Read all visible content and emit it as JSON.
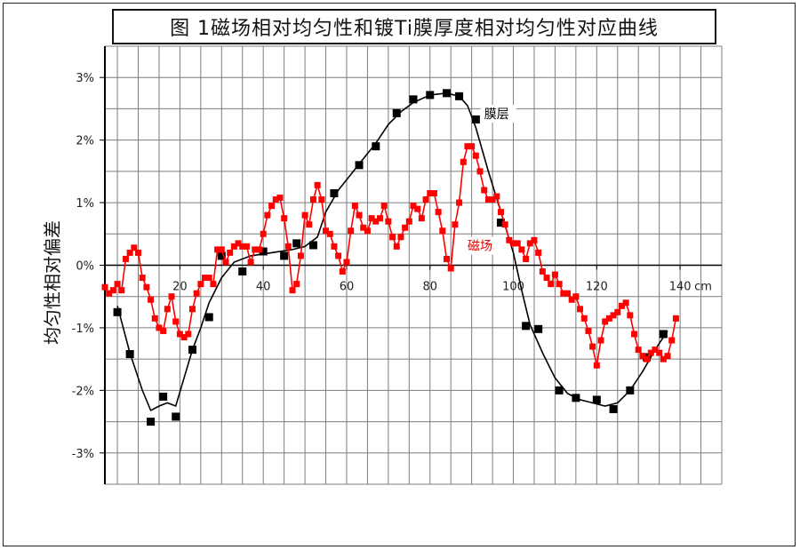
{
  "title": "图  1磁场相对均匀性和镀Ti膜厚度相对均匀性对应曲线",
  "chart_data": {
    "type": "line",
    "title": "图  1磁场相对均匀性和镀Ti膜厚度相对均匀性对应曲线",
    "xlabel": "",
    "ylabel": "均匀性相对偏差",
    "x_unit": "cm",
    "xlim": [
      2,
      150
    ],
    "ylim": [
      -3.5,
      3.5
    ],
    "x_ticks": [
      {
        "value": 20,
        "label": "20"
      },
      {
        "value": 40,
        "label": "40"
      },
      {
        "value": 60,
        "label": "60"
      },
      {
        "value": 80,
        "label": "80"
      },
      {
        "value": 100,
        "label": "100"
      },
      {
        "value": 120,
        "label": "120"
      },
      {
        "value": 140,
        "label": "140"
      }
    ],
    "x_unit_label": "cm",
    "y_ticks": [
      {
        "value": 3,
        "label": "3%"
      },
      {
        "value": 2,
        "label": "2%"
      },
      {
        "value": 1,
        "label": "1%"
      },
      {
        "value": 0,
        "label": "0%"
      },
      {
        "value": -1,
        "label": "-1%"
      },
      {
        "value": -2,
        "label": "-2%"
      },
      {
        "value": -3,
        "label": "-3%"
      }
    ],
    "grid": true,
    "series": [
      {
        "name": "膜层",
        "color": "#000000",
        "marker": "square",
        "label_at": [
          93,
          2.35
        ],
        "points": [
          [
            5,
            -0.75
          ],
          [
            8,
            -1.42
          ],
          [
            13,
            -2.5
          ],
          [
            16,
            -2.1
          ],
          [
            19,
            -2.42
          ],
          [
            23,
            -1.35
          ],
          [
            27,
            -0.83
          ],
          [
            30,
            0.15
          ],
          [
            35,
            -0.1
          ],
          [
            40,
            0.22
          ],
          [
            45,
            0.15
          ],
          [
            48,
            0.35
          ],
          [
            52,
            0.32
          ],
          [
            57,
            1.15
          ],
          [
            63,
            1.6
          ],
          [
            67,
            1.9
          ],
          [
            72,
            2.43
          ],
          [
            76,
            2.65
          ],
          [
            80,
            2.72
          ],
          [
            84,
            2.75
          ],
          [
            87,
            2.7
          ],
          [
            91,
            2.33
          ],
          [
            97,
            0.68
          ],
          [
            103,
            -0.97
          ],
          [
            106,
            -1.02
          ],
          [
            111,
            -2.0
          ],
          [
            115,
            -2.12
          ],
          [
            120,
            -2.15
          ],
          [
            124,
            -2.3
          ],
          [
            128,
            -2.0
          ],
          [
            132,
            -1.47
          ],
          [
            136,
            -1.1
          ]
        ],
        "fit": [
          [
            5,
            -0.65
          ],
          [
            8,
            -1.4
          ],
          [
            11,
            -2.0
          ],
          [
            13,
            -2.32
          ],
          [
            15,
            -2.25
          ],
          [
            17,
            -2.2
          ],
          [
            19,
            -2.25
          ],
          [
            21,
            -1.8
          ],
          [
            23,
            -1.35
          ],
          [
            25,
            -1.0
          ],
          [
            27,
            -0.6
          ],
          [
            30,
            -0.2
          ],
          [
            33,
            0.05
          ],
          [
            37,
            0.15
          ],
          [
            42,
            0.2
          ],
          [
            47,
            0.25
          ],
          [
            50,
            0.3
          ],
          [
            53,
            0.45
          ],
          [
            55,
            0.85
          ],
          [
            58,
            1.2
          ],
          [
            61,
            1.45
          ],
          [
            64,
            1.7
          ],
          [
            67,
            1.95
          ],
          [
            70,
            2.25
          ],
          [
            73,
            2.45
          ],
          [
            76,
            2.6
          ],
          [
            80,
            2.72
          ],
          [
            84,
            2.75
          ],
          [
            87,
            2.7
          ],
          [
            89,
            2.55
          ],
          [
            91,
            2.2
          ],
          [
            94,
            1.5
          ],
          [
            97,
            0.85
          ],
          [
            100,
            0.2
          ],
          [
            102,
            -0.4
          ],
          [
            104,
            -0.95
          ],
          [
            107,
            -1.4
          ],
          [
            110,
            -1.8
          ],
          [
            113,
            -2.05
          ],
          [
            116,
            -2.15
          ],
          [
            119,
            -2.2
          ],
          [
            122,
            -2.25
          ],
          [
            125,
            -2.2
          ],
          [
            128,
            -2.0
          ],
          [
            131,
            -1.7
          ],
          [
            134,
            -1.35
          ],
          [
            137,
            -1.05
          ]
        ]
      },
      {
        "name": "磁场",
        "color": "#ff0000",
        "marker": "square",
        "label_at": [
          89,
          0.24
        ],
        "points": [
          [
            2,
            -0.35
          ],
          [
            3,
            -0.45
          ],
          [
            4,
            -0.4
          ],
          [
            5,
            -0.3
          ],
          [
            6,
            -0.4
          ],
          [
            7,
            0.1
          ],
          [
            8,
            0.2
          ],
          [
            9,
            0.28
          ],
          [
            10,
            0.2
          ],
          [
            11,
            -0.2
          ],
          [
            12,
            -0.35
          ],
          [
            13,
            -0.55
          ],
          [
            14,
            -0.85
          ],
          [
            15,
            -1.0
          ],
          [
            16,
            -1.05
          ],
          [
            17,
            -0.7
          ],
          [
            18,
            -0.5
          ],
          [
            19,
            -0.9
          ],
          [
            20,
            -1.1
          ],
          [
            21,
            -1.15
          ],
          [
            22,
            -1.1
          ],
          [
            23,
            -0.7
          ],
          [
            24,
            -0.45
          ],
          [
            25,
            -0.3
          ],
          [
            26,
            -0.2
          ],
          [
            27,
            -0.2
          ],
          [
            28,
            -0.3
          ],
          [
            29,
            0.25
          ],
          [
            30,
            0.25
          ],
          [
            31,
            0.05
          ],
          [
            32,
            0.2
          ],
          [
            33,
            0.3
          ],
          [
            34,
            0.35
          ],
          [
            35,
            0.3
          ],
          [
            36,
            0.3
          ],
          [
            37,
            0.05
          ],
          [
            38,
            0.25
          ],
          [
            39,
            0.25
          ],
          [
            40,
            0.5
          ],
          [
            41,
            0.8
          ],
          [
            42,
            0.95
          ],
          [
            43,
            1.05
          ],
          [
            44,
            1.08
          ],
          [
            45,
            0.75
          ],
          [
            46,
            0.3
          ],
          [
            47,
            -0.4
          ],
          [
            48,
            -0.3
          ],
          [
            49,
            0.15
          ],
          [
            50,
            0.8
          ],
          [
            51,
            0.65
          ],
          [
            52,
            1.05
          ],
          [
            53,
            1.28
          ],
          [
            54,
            1.05
          ],
          [
            55,
            0.55
          ],
          [
            56,
            0.5
          ],
          [
            57,
            0.3
          ],
          [
            58,
            0.15
          ],
          [
            59,
            -0.1
          ],
          [
            60,
            0.05
          ],
          [
            61,
            0.55
          ],
          [
            62,
            0.95
          ],
          [
            63,
            0.8
          ],
          [
            64,
            0.6
          ],
          [
            65,
            0.55
          ],
          [
            66,
            0.75
          ],
          [
            67,
            0.7
          ],
          [
            68,
            0.75
          ],
          [
            69,
            0.95
          ],
          [
            70,
            0.7
          ],
          [
            71,
            0.45
          ],
          [
            72,
            0.3
          ],
          [
            73,
            0.45
          ],
          [
            74,
            0.6
          ],
          [
            75,
            0.7
          ],
          [
            76,
            0.95
          ],
          [
            77,
            0.9
          ],
          [
            78,
            0.75
          ],
          [
            79,
            1.05
          ],
          [
            80,
            1.15
          ],
          [
            81,
            1.15
          ],
          [
            82,
            0.85
          ],
          [
            83,
            0.55
          ],
          [
            84,
            0.1
          ],
          [
            85,
            -0.05
          ],
          [
            86,
            0.65
          ],
          [
            87,
            1.0
          ],
          [
            88,
            1.65
          ],
          [
            89,
            1.9
          ],
          [
            90,
            1.9
          ],
          [
            91,
            1.75
          ],
          [
            92,
            1.5
          ],
          [
            93,
            1.2
          ],
          [
            94,
            1.05
          ],
          [
            95,
            1.05
          ],
          [
            96,
            1.1
          ],
          [
            97,
            0.85
          ],
          [
            98,
            0.65
          ],
          [
            99,
            0.4
          ],
          [
            100,
            0.35
          ],
          [
            101,
            0.35
          ],
          [
            102,
            0.25
          ],
          [
            103,
            0.1
          ],
          [
            104,
            0.35
          ],
          [
            105,
            0.4
          ],
          [
            106,
            0.2
          ],
          [
            107,
            -0.1
          ],
          [
            108,
            -0.2
          ],
          [
            109,
            -0.3
          ],
          [
            110,
            -0.15
          ],
          [
            111,
            -0.3
          ],
          [
            112,
            -0.45
          ],
          [
            113,
            -0.45
          ],
          [
            114,
            -0.55
          ],
          [
            115,
            -0.5
          ],
          [
            116,
            -0.7
          ],
          [
            117,
            -0.85
          ],
          [
            118,
            -1.05
          ],
          [
            119,
            -1.3
          ],
          [
            120,
            -1.6
          ],
          [
            121,
            -1.2
          ],
          [
            122,
            -0.9
          ],
          [
            123,
            -0.85
          ],
          [
            124,
            -0.8
          ],
          [
            125,
            -0.75
          ],
          [
            126,
            -0.65
          ],
          [
            127,
            -0.6
          ],
          [
            128,
            -0.8
          ],
          [
            129,
            -1.1
          ],
          [
            130,
            -1.35
          ],
          [
            131,
            -1.45
          ],
          [
            132,
            -1.5
          ],
          [
            133,
            -1.4
          ],
          [
            134,
            -1.35
          ],
          [
            135,
            -1.4
          ],
          [
            136,
            -1.5
          ],
          [
            137,
            -1.45
          ],
          [
            138,
            -1.2
          ],
          [
            139,
            -0.85
          ]
        ]
      }
    ]
  }
}
